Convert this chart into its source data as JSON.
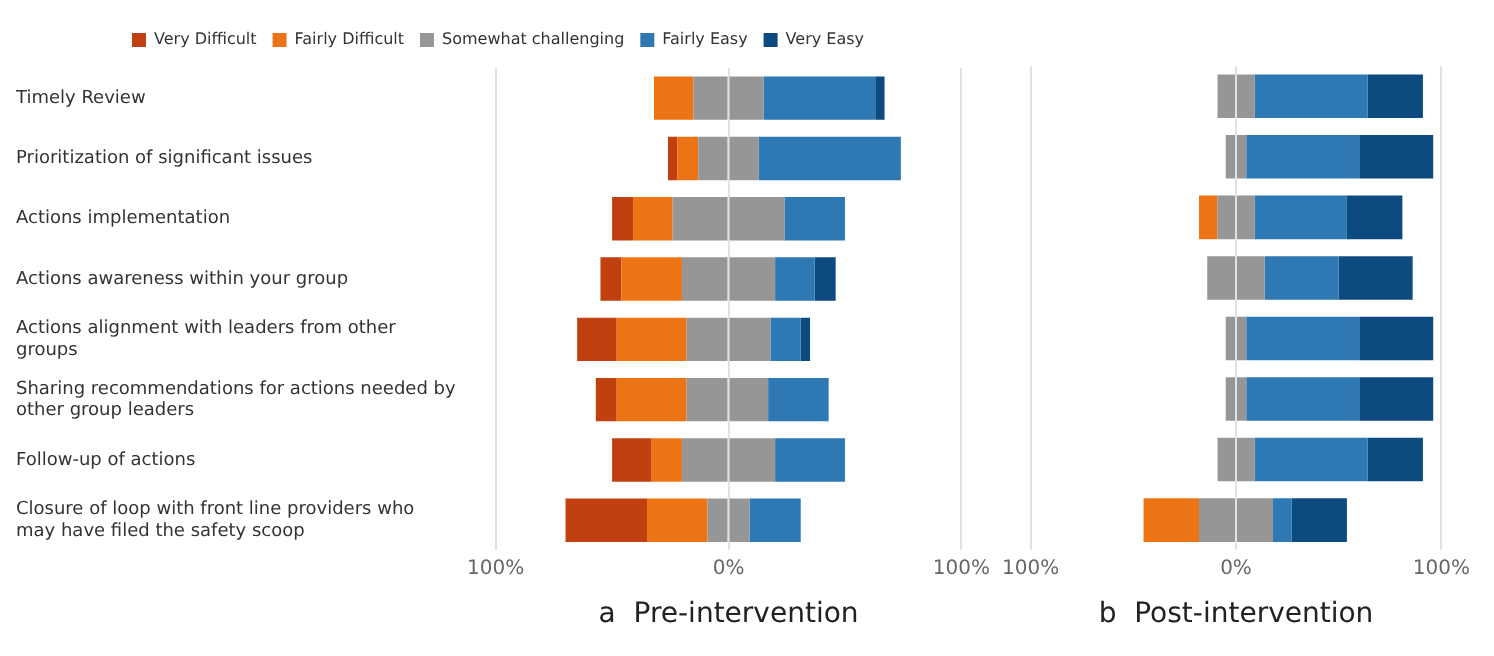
{
  "chart_data": [
    {
      "type": "bar",
      "orientation": "horizontal",
      "stacked": true,
      "xlabel": "a  Pre-intervention",
      "legend": "top",
      "grid": "x",
      "categories": [
        "Timely Review",
        "Prioritization of significant issues",
        "Actions implementation",
        "Actions awareness within your group",
        "Actions alignment with leaders from other groups",
        "Sharing recommendations for actions needed by other group leaders",
        "Follow-up of actions",
        "Closure of loop with front line providers who may have filed the safety scoop"
      ],
      "xlim": [
        -100,
        100
      ],
      "xticks": [
        {
          "value": -100,
          "label": "100%"
        },
        {
          "value": 0,
          "label": "0%"
        },
        {
          "value": 100,
          "label": "100%"
        }
      ],
      "series": [
        {
          "name": "Somewhat challenging",
          "color": "#969696",
          "values": [
            -15,
            -13,
            -24,
            -20,
            -18,
            -18,
            -20,
            -9
          ]
        },
        {
          "name": "Fairly Difficult",
          "color": "#ed7414",
          "values": [
            -17,
            -9,
            -17,
            -26,
            -30,
            -30,
            -13,
            -26
          ]
        },
        {
          "name": "Very Difficult",
          "color": "#c0400f",
          "values": [
            0,
            -4,
            -9,
            -9,
            -17,
            -9,
            -17,
            -35
          ]
        },
        {
          "color": "#969696",
          "values": [
            15,
            13,
            24,
            20,
            18,
            17,
            20,
            9
          ]
        },
        {
          "name": "Fairly Easy",
          "color": "#2e78b4",
          "values": [
            48,
            61,
            26,
            17,
            13,
            26,
            30,
            22
          ]
        },
        {
          "name": "Very Easy",
          "color": "#0c4a80",
          "values": [
            4,
            0,
            0,
            9,
            4,
            0,
            0,
            0
          ]
        }
      ]
    },
    {
      "type": "bar",
      "orientation": "horizontal",
      "stacked": true,
      "xlabel": "b  Post-intervention",
      "grid": "x",
      "tick_labels": "x",
      "categories": [
        null,
        null,
        null,
        null,
        null,
        null,
        null,
        null
      ],
      "xlim": [
        -100,
        100
      ],
      "xticks": [
        {
          "value": -100,
          "label": "100%"
        },
        {
          "value": 0,
          "label": "0%"
        },
        {
          "value": 100,
          "label": "100%"
        }
      ],
      "series": [
        {
          "color": "#969696",
          "values": [
            -9,
            -5,
            -9,
            -14,
            -5,
            -5,
            -9,
            -18
          ]
        },
        {
          "color": "#ed7414",
          "values": [
            0,
            0,
            -9,
            0,
            0,
            0,
            0,
            -27
          ]
        },
        {
          "color": "#c0400f",
          "values": [
            0,
            0,
            0,
            0,
            0,
            0,
            0,
            0
          ]
        },
        {
          "color": "#969696",
          "values": [
            9,
            5,
            9,
            14,
            5,
            5,
            9,
            18
          ]
        },
        {
          "color": "#2e78b4",
          "values": [
            55,
            55,
            45,
            36,
            55,
            55,
            55,
            9
          ]
        },
        {
          "color": "#0c4a80",
          "values": [
            27,
            36,
            27,
            36,
            36,
            36,
            27,
            27
          ]
        }
      ]
    }
  ]
}
